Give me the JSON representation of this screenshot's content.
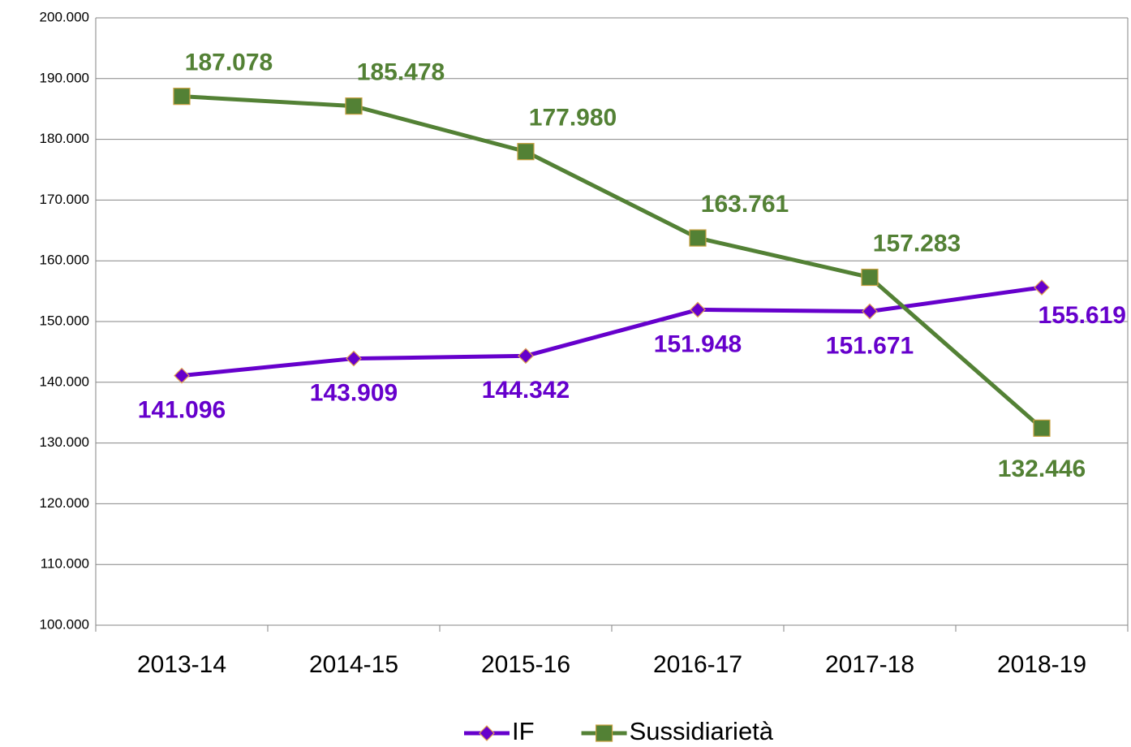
{
  "chart_data": {
    "type": "line",
    "categories": [
      "2013-14",
      "2014-15",
      "2015-16",
      "2016-17",
      "2017-18",
      "2018-19"
    ],
    "series": [
      {
        "name": "IF",
        "color": "#6600cc",
        "marker": "diamond",
        "values": [
          141096,
          143909,
          144342,
          151948,
          151671,
          155619
        ],
        "value_labels": [
          "141.096",
          "143.909",
          "144.342",
          "151.948",
          "151.671",
          "155.619"
        ]
      },
      {
        "name": "Sussidiarietà",
        "color": "#538135",
        "marker": "square",
        "values": [
          187078,
          185478,
          177980,
          163761,
          157283,
          132446
        ],
        "value_labels": [
          "187.078",
          "185.478",
          "177.980",
          "163.761",
          "157.283",
          "132.446"
        ]
      }
    ],
    "ylim": [
      100000,
      200000
    ],
    "yticks": [
      {
        "value": 100000,
        "label": "100.000"
      },
      {
        "value": 110000,
        "label": "110.000"
      },
      {
        "value": 120000,
        "label": "120.000"
      },
      {
        "value": 130000,
        "label": "130.000"
      },
      {
        "value": 140000,
        "label": "140.000"
      },
      {
        "value": 150000,
        "label": "150.000"
      },
      {
        "value": 160000,
        "label": "160.000"
      },
      {
        "value": 170000,
        "label": "170.000"
      },
      {
        "value": 180000,
        "label": "180.000"
      },
      {
        "value": 190000,
        "label": "190.000"
      },
      {
        "value": 200000,
        "label": "200.000"
      }
    ],
    "grid": true,
    "legend": "bottom"
  }
}
